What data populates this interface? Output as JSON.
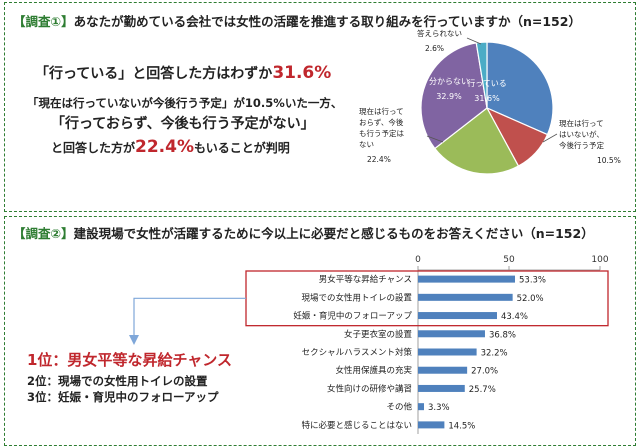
{
  "survey1": {
    "tag": "【調査①】",
    "question": "あなたが勤めている会社では女性の活躍を推進する取り組みを行っていますか",
    "n": "（n=152）",
    "highlight": {
      "line1_pre": "「行っている」と回答した方はわずか",
      "line1_pct": "31.6%",
      "line2": "「現在は行っていないが今後行う予定」が10.5%いた一方、",
      "line3": "「行っておらず、今後も行う予定がない」",
      "line4_pre": "と回答した方が",
      "line4_pct": "22.4%",
      "line4_post": "もいることが判明"
    }
  },
  "survey2": {
    "tag": "【調査②】",
    "question": "建設現場で女性が活躍するために今以上に必要だと感じるものをお答えください",
    "n": "（n=152）",
    "ranking": {
      "first": "1位：男女平等な昇給チャンス",
      "second": "2位：現場での女性用トイレの設置",
      "third": "3位：妊娠・育児中のフォローアップ"
    }
  },
  "chart_data": [
    {
      "type": "pie",
      "title": "あなたが勤めている会社では女性の活躍を推進する取り組みを行っていますか",
      "slices": [
        {
          "label": "行っている",
          "value": 31.6,
          "value_label": "31.6%",
          "color": "#4f81bd"
        },
        {
          "label": "現在は行っていないが、今後行う予定",
          "value": 10.5,
          "value_label": "10.5%",
          "color": "#c0504d"
        },
        {
          "label": "現在は行っておらず、今後も行う予定はない",
          "value": 22.4,
          "value_label": "22.4%",
          "color": "#9bbb59"
        },
        {
          "label": "分からない",
          "value": 32.9,
          "value_label": "32.9%",
          "color": "#8064a2"
        },
        {
          "label": "答えられない",
          "value": 2.6,
          "value_label": "2.6%",
          "color": "#4bacc6"
        }
      ]
    },
    {
      "type": "bar",
      "orientation": "horizontal",
      "title": "建設現場で女性が活躍するために今以上に必要だと感じるもの",
      "categories": [
        "男女平等な昇給チャンス",
        "現場での女性用トイレの設置",
        "妊娠・育児中のフォローアップ",
        "女子更衣室の設置",
        "セクシャルハラスメント対策",
        "女性用保護具の充実",
        "女性向けの研修や講習",
        "その他",
        "特に必要と感じることはない"
      ],
      "values": [
        53.3,
        52.0,
        43.4,
        36.8,
        32.2,
        27.0,
        25.7,
        3.3,
        14.5
      ],
      "value_labels": [
        "53.3%",
        "52.0%",
        "43.4%",
        "36.8%",
        "32.2%",
        "27.0%",
        "25.7%",
        "3.3%",
        "14.5%"
      ],
      "xlim": [
        0,
        100
      ],
      "xticks": [
        0,
        50,
        100
      ],
      "xtick_labels": [
        "0",
        "50",
        "100"
      ],
      "highlighted_top": 3,
      "color": "#4f81bd"
    }
  ]
}
